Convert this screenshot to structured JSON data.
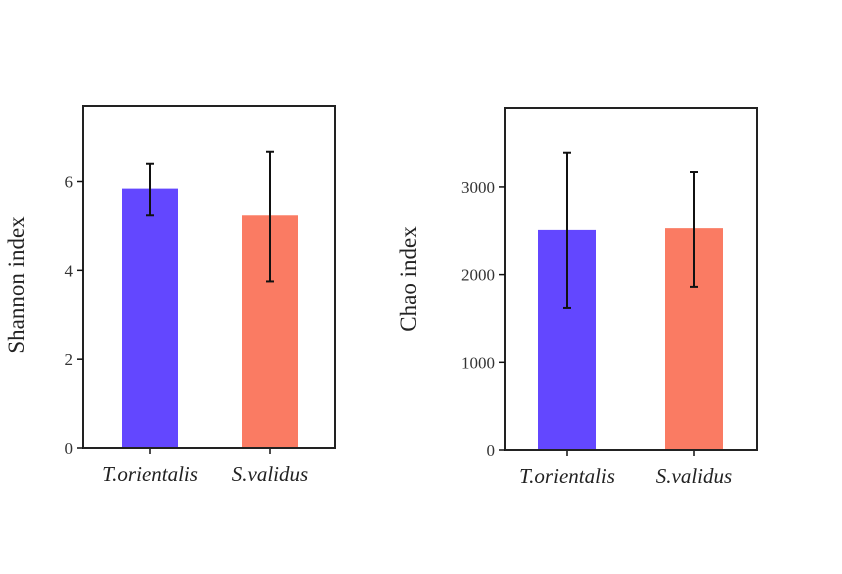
{
  "chart_data": [
    {
      "type": "bar",
      "title": "",
      "xlabel": "",
      "ylabel": "Shannon index",
      "categories": [
        "T.orientalis",
        "S.validus"
      ],
      "values": [
        5.84,
        5.24
      ],
      "error_low": [
        5.24,
        3.75
      ],
      "error_high": [
        6.4,
        6.67
      ],
      "colors": [
        "#6347ff",
        "#fa7b63"
      ],
      "ylim": [
        0,
        7.7
      ],
      "yticks": [
        0,
        2,
        4,
        6
      ],
      "ytick_labels": [
        "0",
        "2",
        "4",
        "6"
      ],
      "grid": false
    },
    {
      "type": "bar",
      "title": "",
      "xlabel": "",
      "ylabel": "Chao index",
      "categories": [
        "T.orientalis",
        "S.validus"
      ],
      "values": [
        2510,
        2530
      ],
      "error_low": [
        1620,
        1860
      ],
      "error_high": [
        3390,
        3170
      ],
      "colors": [
        "#6347ff",
        "#fa7b63"
      ],
      "ylim": [
        0,
        3900
      ],
      "yticks": [
        0,
        1000,
        2000,
        3000
      ],
      "ytick_labels": [
        "0",
        "1000",
        "2000",
        "3000"
      ],
      "grid": false
    }
  ]
}
